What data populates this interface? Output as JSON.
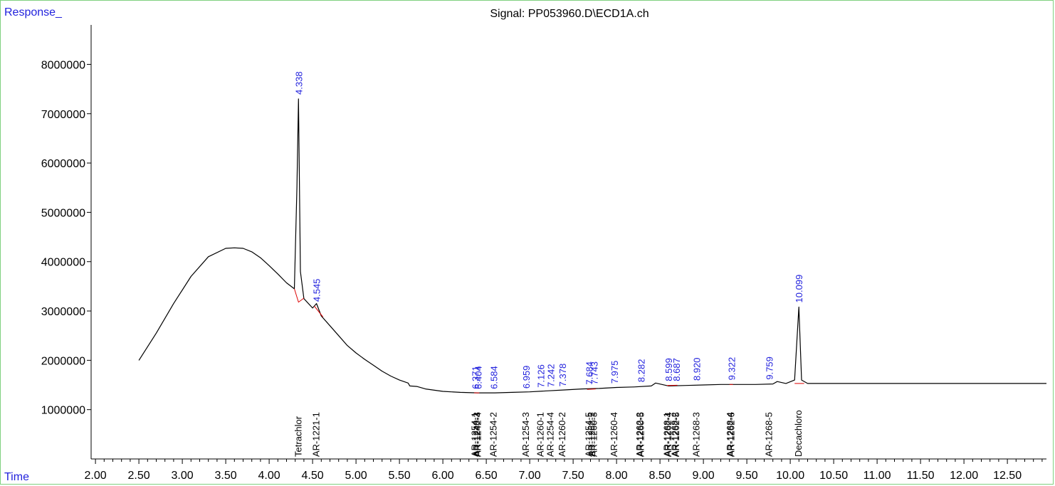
{
  "chart_data": {
    "type": "line",
    "title": "Signal: PP053960.D\\ECD1A.ch",
    "ylabel": "Response_",
    "xlabel": "Time",
    "xlim": [
      1.95,
      12.95
    ],
    "ylim": [
      0,
      8800000
    ],
    "grid": false,
    "x_ticks": [
      2.0,
      2.5,
      3.0,
      3.5,
      4.0,
      4.5,
      5.0,
      5.5,
      6.0,
      6.5,
      7.0,
      7.5,
      8.0,
      8.5,
      9.0,
      9.5,
      10.0,
      10.5,
      11.0,
      11.5,
      12.0,
      12.5
    ],
    "x_tick_labels": [
      "2.00",
      "2.50",
      "3.00",
      "3.50",
      "4.00",
      "4.50",
      "5.00",
      "5.50",
      "6.00",
      "6.50",
      "7.00",
      "7.50",
      "8.00",
      "8.50",
      "9.00",
      "9.50",
      "10.00",
      "10.50",
      "11.00",
      "11.50",
      "12.00",
      "12.50"
    ],
    "y_ticks": [
      1000000,
      2000000,
      3000000,
      4000000,
      5000000,
      6000000,
      7000000,
      8000000
    ],
    "y_tick_labels": [
      "1000000",
      "2000000",
      "3000000",
      "4000000",
      "5000000",
      "6000000",
      "7000000",
      "8000000"
    ],
    "series": [
      {
        "color": "#000000",
        "x": [
          2.5,
          2.7,
          2.9,
          3.1,
          3.3,
          3.5,
          3.6,
          3.7,
          3.8,
          3.9,
          4.0,
          4.1,
          4.2,
          4.29,
          4.32,
          4.338,
          4.36,
          4.4,
          4.5,
          4.545,
          4.6,
          4.7,
          4.8,
          4.9,
          5.0,
          5.1,
          5.2,
          5.3,
          5.4,
          5.5,
          5.6,
          5.62,
          5.7,
          5.8,
          6.0,
          6.2,
          6.4,
          6.6,
          6.8,
          7.0,
          7.2,
          7.4,
          7.6,
          7.8,
          8.0,
          8.2,
          8.4,
          8.45,
          8.6,
          8.8,
          9.0,
          9.2,
          9.4,
          9.6,
          9.8,
          9.85,
          9.95,
          10.05,
          10.099,
          10.13,
          10.2,
          10.5,
          11.0,
          11.5,
          12.0,
          12.5,
          12.95
        ],
        "y": [
          2000000,
          2550000,
          3150000,
          3700000,
          4100000,
          4270000,
          4280000,
          4270000,
          4200000,
          4080000,
          3920000,
          3750000,
          3570000,
          3450000,
          5500000,
          7300000,
          3800000,
          3250000,
          3060000,
          3150000,
          2900000,
          2700000,
          2500000,
          2300000,
          2150000,
          2020000,
          1900000,
          1780000,
          1680000,
          1600000,
          1540000,
          1480000,
          1470000,
          1420000,
          1370000,
          1350000,
          1340000,
          1340000,
          1350000,
          1360000,
          1380000,
          1400000,
          1420000,
          1430000,
          1450000,
          1460000,
          1480000,
          1540000,
          1480000,
          1490000,
          1500000,
          1510000,
          1510000,
          1510000,
          1520000,
          1570000,
          1530000,
          1600000,
          3080000,
          1600000,
          1530000,
          1530000,
          1530000,
          1530000,
          1530000,
          1530000,
          1530000
        ]
      }
    ],
    "peak_labels": [
      {
        "x": 4.338,
        "y": 7300000,
        "text": "4.338"
      },
      {
        "x": 4.545,
        "y": 3100000,
        "text": "4.545"
      },
      {
        "x": 6.371,
        "y": 1330000,
        "text": "6.371"
      },
      {
        "x": 6.404,
        "y": 1330000,
        "text": "6.404"
      },
      {
        "x": 6.584,
        "y": 1330000,
        "text": "6.584"
      },
      {
        "x": 6.959,
        "y": 1340000,
        "text": "6.959"
      },
      {
        "x": 7.126,
        "y": 1360000,
        "text": "7.126"
      },
      {
        "x": 7.242,
        "y": 1370000,
        "text": "7.242"
      },
      {
        "x": 7.378,
        "y": 1380000,
        "text": "7.378"
      },
      {
        "x": 7.684,
        "y": 1420000,
        "text": "7.684"
      },
      {
        "x": 7.743,
        "y": 1420000,
        "text": "7.743"
      },
      {
        "x": 7.975,
        "y": 1440000,
        "text": "7.975"
      },
      {
        "x": 8.282,
        "y": 1470000,
        "text": "8.282"
      },
      {
        "x": 8.599,
        "y": 1490000,
        "text": "8.599"
      },
      {
        "x": 8.687,
        "y": 1490000,
        "text": "8.687"
      },
      {
        "x": 8.92,
        "y": 1500000,
        "text": "8.920"
      },
      {
        "x": 9.322,
        "y": 1510000,
        "text": "9.322"
      },
      {
        "x": 9.759,
        "y": 1520000,
        "text": "9.759"
      },
      {
        "x": 10.099,
        "y": 3080000,
        "text": "10.099"
      }
    ],
    "compound_labels": [
      {
        "x": 4.338,
        "text": "Tetrachlor"
      },
      {
        "x": 4.545,
        "text": "AR-1221-1"
      },
      {
        "x": 6.371,
        "text": "AR-1254-1"
      },
      {
        "x": 6.392,
        "text": "AR-1248-3"
      },
      {
        "x": 6.404,
        "text": "AR-1242-4"
      },
      {
        "x": 6.584,
        "text": "AR-1254-2"
      },
      {
        "x": 6.959,
        "text": "AR-1254-3"
      },
      {
        "x": 7.126,
        "text": "AR-1260-1"
      },
      {
        "x": 7.242,
        "text": "AR-1254-4"
      },
      {
        "x": 7.378,
        "text": "AR-1260-2"
      },
      {
        "x": 7.684,
        "text": "AR-1254-5"
      },
      {
        "x": 7.715,
        "text": "AR-1262-2"
      },
      {
        "x": 7.743,
        "text": "AR-1260-3"
      },
      {
        "x": 7.975,
        "text": "AR-1260-4"
      },
      {
        "x": 8.27,
        "text": "AR-1262-3"
      },
      {
        "x": 8.282,
        "text": "AR-1260-5"
      },
      {
        "x": 8.585,
        "text": "AR-1268-1"
      },
      {
        "x": 8.599,
        "text": "AR-1262-4"
      },
      {
        "x": 8.675,
        "text": "AR-1268-2"
      },
      {
        "x": 8.687,
        "text": "AR-1262-5"
      },
      {
        "x": 8.92,
        "text": "AR-1268-3"
      },
      {
        "x": 9.31,
        "text": "AR-1268-4"
      },
      {
        "x": 9.322,
        "text": "AR-1262-6"
      },
      {
        "x": 9.759,
        "text": "AR-1268-5"
      },
      {
        "x": 10.099,
        "text": "Decachloro"
      }
    ],
    "baseline_segments": [
      {
        "x": [
          4.29,
          4.338,
          4.4
        ],
        "y": [
          3450000,
          3180000,
          3260000
        ]
      },
      {
        "x": [
          4.52,
          4.62
        ],
        "y": [
          3100000,
          2880000
        ]
      },
      {
        "x": [
          6.36,
          6.42
        ],
        "y": [
          1340000,
          1340000
        ]
      },
      {
        "x": [
          7.66,
          7.76
        ],
        "y": [
          1410000,
          1420000
        ]
      },
      {
        "x": [
          8.58,
          8.7
        ],
        "y": [
          1490000,
          1495000
        ]
      },
      {
        "x": [
          9.3,
          9.34
        ],
        "y": [
          1510000,
          1510000
        ]
      },
      {
        "x": [
          10.05,
          10.16
        ],
        "y": [
          1530000,
          1530000
        ]
      }
    ],
    "colors": {
      "trace": "#000000",
      "peak_labels": "#2222dd",
      "baseline": "#dd0000",
      "frame": "#7fd07f"
    }
  }
}
